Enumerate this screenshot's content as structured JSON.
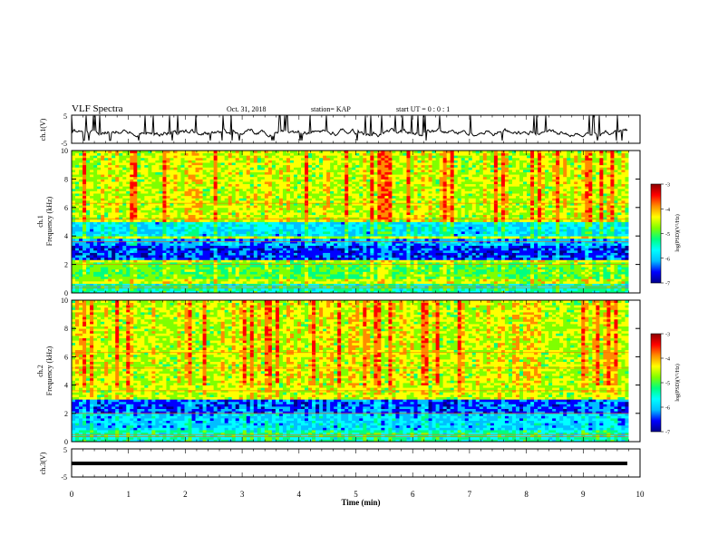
{
  "header": {
    "title": "VLF Spectra",
    "date": "Oct. 31, 2018",
    "station": "station= KAP",
    "start_ut": "start UT =  0 : 0 : 1"
  },
  "colors": {
    "scale": [
      "#00008b",
      "#0000ff",
      "#00bfff",
      "#00ffff",
      "#00ff7f",
      "#7fff00",
      "#ffff00",
      "#ff8c00",
      "#ff0000",
      "#8b0000"
    ]
  },
  "chart_data": [
    {
      "type": "line",
      "ylabel": "ch.1(V)",
      "ylim": [
        -5,
        5
      ],
      "yticks": [
        "5",
        "-5"
      ],
      "xlim": [
        0,
        10
      ],
      "series": [
        {
          "description": "noisy voltage trace around -1 V",
          "mean": -1,
          "approx_range": [
            -4,
            5
          ]
        }
      ]
    },
    {
      "type": "heatmap",
      "ylabel": "ch.1\nFrequency  (kHz)",
      "ylim": [
        0,
        10
      ],
      "yticks": [
        "10",
        "8",
        "6",
        "4",
        "2",
        "0"
      ],
      "xlim": [
        0,
        9.8
      ],
      "colorbar": {
        "label": "log(PSD)(V²/Hz)",
        "range": [
          -7,
          -3
        ],
        "ticks": [
          "-3",
          "-4",
          "-5",
          "-6",
          "-7"
        ]
      },
      "bands_kHz": [
        {
          "from": 0,
          "to": 0.6,
          "level": -5.5
        },
        {
          "from": 1.0,
          "to": 2.2,
          "level": -5.0
        },
        {
          "from": 2.4,
          "to": 3.4,
          "level": -6.6
        },
        {
          "from": 3.4,
          "to": 3.8,
          "level": -6.2
        },
        {
          "from": 4.0,
          "to": 5.0,
          "level": -5.9
        },
        {
          "from": 5.0,
          "to": 10.0,
          "level": -4.6
        }
      ]
    },
    {
      "type": "heatmap",
      "ylabel": "ch.2\nFrequency  (kHz)",
      "ylim": [
        0,
        10
      ],
      "yticks": [
        "10",
        "8",
        "6",
        "4",
        "2",
        "0"
      ],
      "xlim": [
        0,
        9.8
      ],
      "colorbar": {
        "label": "log(PSD)(V²/Hz)",
        "range": [
          -7,
          -3
        ],
        "ticks": [
          "-3",
          "-4",
          "-5",
          "-6",
          "-7"
        ]
      },
      "bands_kHz": [
        {
          "from": 0,
          "to": 0.8,
          "level": -5.5
        },
        {
          "from": 0.8,
          "to": 2.0,
          "level": -6.0
        },
        {
          "from": 2.0,
          "to": 3.0,
          "level": -6.5
        },
        {
          "from": 3.0,
          "to": 10.0,
          "level": -4.6
        }
      ]
    },
    {
      "type": "line",
      "ylabel": "ch.3(V)",
      "ylim": [
        -5,
        5
      ],
      "yticks": [
        "5",
        "-5"
      ],
      "xlim": [
        0,
        10
      ],
      "series": [
        {
          "description": "flat thick line",
          "value": -1
        }
      ]
    }
  ],
  "x_axis": {
    "label": "Time  (min)",
    "ticks": [
      "0",
      "1",
      "2",
      "3",
      "4",
      "5",
      "6",
      "7",
      "8",
      "9",
      "10"
    ],
    "range": [
      0,
      10
    ]
  }
}
